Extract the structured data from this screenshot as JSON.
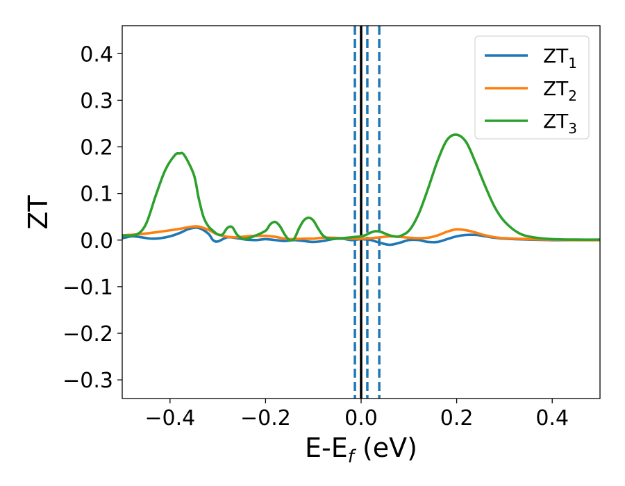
{
  "chart_data": {
    "type": "line",
    "title": "",
    "xlabel": "E-E",
    "xlabel_sub": "f",
    "xlabel_unit": " (eV)",
    "ylabel": "ZT",
    "xlim": [
      -0.5,
      0.5
    ],
    "ylim": [
      -0.34,
      0.46
    ],
    "xticks": [
      -0.4,
      -0.2,
      0.0,
      0.2,
      0.4
    ],
    "xtick_labels": [
      "−0.4",
      "−0.2",
      "0.0",
      "0.2",
      "0.4"
    ],
    "yticks": [
      -0.3,
      -0.2,
      -0.1,
      0.0,
      0.1,
      0.2,
      0.3,
      0.4
    ],
    "ytick_labels": [
      "−0.3",
      "−0.2",
      "−0.1",
      "0.0",
      "0.1",
      "0.2",
      "0.3",
      "0.4"
    ],
    "legend_position": "top-right",
    "grid": false,
    "vertical_lines": [
      {
        "x": 0.0,
        "color": "#000000",
        "style": "solid"
      },
      {
        "x": -0.013,
        "color": "#1f77b4",
        "style": "dashed"
      },
      {
        "x": 0.013,
        "color": "#1f77b4",
        "style": "dashed"
      },
      {
        "x": 0.038,
        "color": "#1f77b4",
        "style": "dashed"
      }
    ],
    "series": [
      {
        "name": "ZT",
        "name_sub": "1",
        "color": "#1f77b4",
        "x": [
          -0.5,
          -0.48,
          -0.46,
          -0.44,
          -0.42,
          -0.4,
          -0.38,
          -0.36,
          -0.34,
          -0.32,
          -0.31,
          -0.3,
          -0.28,
          -0.26,
          -0.24,
          -0.22,
          -0.2,
          -0.18,
          -0.16,
          -0.14,
          -0.12,
          -0.1,
          -0.08,
          -0.06,
          -0.04,
          -0.02,
          0.0,
          0.02,
          0.04,
          0.06,
          0.08,
          0.1,
          0.12,
          0.14,
          0.16,
          0.18,
          0.2,
          0.22,
          0.24,
          0.26,
          0.28,
          0.3,
          0.35,
          0.4,
          0.45,
          0.5
        ],
        "y": [
          0.004,
          0.008,
          0.006,
          0.003,
          0.004,
          0.008,
          0.015,
          0.024,
          0.026,
          0.014,
          0.0,
          -0.003,
          0.006,
          0.004,
          0.001,
          0.0,
          0.002,
          0.0,
          -0.002,
          0.0,
          -0.002,
          -0.004,
          -0.002,
          0.002,
          0.003,
          0.0,
          0.002,
          0.0,
          -0.006,
          -0.01,
          -0.006,
          0.0,
          0.0,
          -0.004,
          -0.004,
          0.002,
          0.008,
          0.011,
          0.011,
          0.008,
          0.005,
          0.003,
          0.001,
          0.0,
          0.0,
          0.0
        ]
      },
      {
        "name": "ZT",
        "name_sub": "2",
        "color": "#ff7f0e",
        "x": [
          -0.5,
          -0.46,
          -0.42,
          -0.38,
          -0.36,
          -0.34,
          -0.32,
          -0.3,
          -0.28,
          -0.26,
          -0.24,
          -0.22,
          -0.2,
          -0.18,
          -0.16,
          -0.14,
          -0.12,
          -0.1,
          -0.08,
          -0.06,
          -0.04,
          -0.02,
          0.0,
          0.02,
          0.04,
          0.06,
          0.08,
          0.1,
          0.12,
          0.14,
          0.16,
          0.18,
          0.2,
          0.22,
          0.24,
          0.26,
          0.28,
          0.3,
          0.35,
          0.4,
          0.45,
          0.5
        ],
        "y": [
          0.01,
          0.013,
          0.018,
          0.024,
          0.028,
          0.029,
          0.022,
          0.012,
          0.007,
          0.006,
          0.008,
          0.009,
          0.009,
          0.007,
          0.003,
          0.002,
          0.003,
          0.003,
          0.005,
          0.005,
          0.004,
          0.003,
          0.003,
          0.004,
          0.006,
          0.008,
          0.007,
          0.005,
          0.004,
          0.005,
          0.01,
          0.018,
          0.023,
          0.021,
          0.016,
          0.01,
          0.006,
          0.004,
          0.002,
          0.001,
          0.0,
          0.0
        ]
      },
      {
        "name": "ZT",
        "name_sub": "3",
        "color": "#2ca02c",
        "x": [
          -0.5,
          -0.47,
          -0.45,
          -0.43,
          -0.41,
          -0.39,
          -0.38,
          -0.37,
          -0.35,
          -0.34,
          -0.33,
          -0.32,
          -0.31,
          -0.3,
          -0.29,
          -0.28,
          -0.27,
          -0.26,
          -0.25,
          -0.24,
          -0.22,
          -0.2,
          -0.19,
          -0.18,
          -0.17,
          -0.16,
          -0.15,
          -0.14,
          -0.13,
          -0.12,
          -0.11,
          -0.1,
          -0.09,
          -0.08,
          -0.07,
          -0.06,
          -0.04,
          -0.02,
          0.0,
          0.01,
          0.02,
          0.03,
          0.04,
          0.05,
          0.06,
          0.07,
          0.08,
          0.1,
          0.12,
          0.14,
          0.16,
          0.18,
          0.2,
          0.22,
          0.24,
          0.26,
          0.28,
          0.3,
          0.33,
          0.36,
          0.4,
          0.45,
          0.5
        ],
        "y": [
          0.01,
          0.012,
          0.035,
          0.095,
          0.15,
          0.182,
          0.186,
          0.182,
          0.14,
          0.09,
          0.05,
          0.03,
          0.02,
          0.012,
          0.012,
          0.026,
          0.028,
          0.012,
          0.004,
          0.003,
          0.01,
          0.02,
          0.034,
          0.039,
          0.03,
          0.012,
          0.0,
          0.003,
          0.025,
          0.042,
          0.048,
          0.042,
          0.025,
          0.01,
          0.004,
          0.003,
          0.004,
          0.006,
          0.008,
          0.011,
          0.016,
          0.019,
          0.018,
          0.014,
          0.01,
          0.008,
          0.008,
          0.02,
          0.055,
          0.11,
          0.17,
          0.215,
          0.226,
          0.21,
          0.165,
          0.115,
          0.07,
          0.04,
          0.015,
          0.006,
          0.002,
          0.001,
          0.001
        ]
      }
    ]
  }
}
